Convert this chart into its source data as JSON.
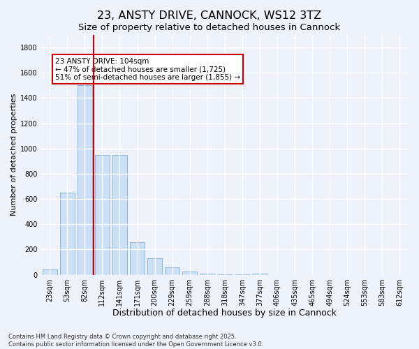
{
  "title": "23, ANSTY DRIVE, CANNOCK, WS12 3TZ",
  "subtitle": "Size of property relative to detached houses in Cannock",
  "xlabel": "Distribution of detached houses by size in Cannock",
  "ylabel": "Number of detached properties",
  "categories": [
    "23sqm",
    "53sqm",
    "82sqm",
    "112sqm",
    "141sqm",
    "171sqm",
    "200sqm",
    "229sqm",
    "259sqm",
    "288sqm",
    "318sqm",
    "347sqm",
    "377sqm",
    "406sqm",
    "435sqm",
    "465sqm",
    "494sqm",
    "524sqm",
    "553sqm",
    "583sqm",
    "612sqm"
  ],
  "values": [
    40,
    650,
    1500,
    950,
    950,
    260,
    130,
    60,
    25,
    10,
    5,
    5,
    10,
    0,
    0,
    0,
    0,
    0,
    0,
    0,
    0
  ],
  "bar_color": "#cce0f5",
  "bar_edgecolor": "#8ab8d8",
  "vline_x_index": 2,
  "vline_color": "#cc0000",
  "annotation_text": "23 ANSTY DRIVE: 104sqm\n← 47% of detached houses are smaller (1,725)\n51% of semi-detached houses are larger (1,855) →",
  "annotation_box_facecolor": "#ffffff",
  "annotation_box_edgecolor": "#cc0000",
  "ylim": [
    0,
    1900
  ],
  "yticks": [
    0,
    200,
    400,
    600,
    800,
    1000,
    1200,
    1400,
    1600,
    1800
  ],
  "bg_color": "#eef2fa",
  "plot_bg_color": "#eef2fa",
  "grid_color": "#ffffff",
  "footnote": "Contains HM Land Registry data © Crown copyright and database right 2025.\nContains public sector information licensed under the Open Government Licence v3.0.",
  "title_fontsize": 11.5,
  "subtitle_fontsize": 9.5,
  "xlabel_fontsize": 9,
  "ylabel_fontsize": 8,
  "tick_fontsize": 7,
  "annot_fontsize": 7.5,
  "footnote_fontsize": 6
}
